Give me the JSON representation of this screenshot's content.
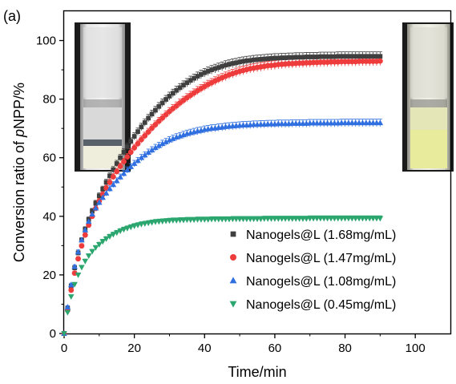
{
  "panel_label": "(a)",
  "colors": {
    "s168": "#3f3f3f",
    "s147": "#ee3b3b",
    "s108": "#2f6fe0",
    "s045": "#2aa66e"
  },
  "chart_data": {
    "type": "scatter",
    "title": "",
    "xlabel": "Time/min",
    "ylabel_prefix": "Conversion ratio of ",
    "ylabel_italic": "p",
    "ylabel_suffix": "NPP/%",
    "xlim": [
      0,
      110
    ],
    "ylim": [
      0,
      110
    ],
    "x_ticks": [
      0,
      20,
      40,
      60,
      80,
      100
    ],
    "y_ticks": [
      0,
      20,
      40,
      60,
      80,
      100
    ],
    "x_tick_labels": [
      "0",
      "20",
      "40",
      "60",
      "80",
      "100"
    ],
    "y_tick_labels": [
      "0",
      "20",
      "40",
      "60",
      "80",
      "100"
    ],
    "legend_position": "bottom-right",
    "error_bars": true,
    "series": [
      {
        "name": "Nanogels@L (1.68mg/mL)",
        "marker": "square",
        "color_key": "s168",
        "x": [
          0,
          1,
          2,
          3,
          4,
          5,
          6,
          7,
          8,
          9,
          10,
          11,
          12,
          13,
          14,
          15,
          16,
          17,
          18,
          19,
          20,
          21,
          22,
          23,
          24,
          25,
          26,
          27,
          28,
          29,
          30,
          31,
          32,
          33,
          34,
          35,
          36,
          37,
          38,
          39,
          40,
          41,
          42,
          43,
          44,
          45,
          46,
          47,
          48,
          49,
          50,
          51,
          52,
          53,
          54,
          55,
          56,
          57,
          58,
          59,
          60,
          61,
          62,
          63,
          64,
          65,
          66,
          67,
          68,
          69,
          70,
          71,
          72,
          73,
          74,
          75,
          76,
          77,
          78,
          79,
          80,
          81,
          82,
          83,
          84,
          85,
          86,
          87,
          88,
          89,
          90
        ],
        "y": [
          0.0,
          8.6,
          16.2,
          22.4,
          27.5,
          31.9,
          35.6,
          38.9,
          41.8,
          44.5,
          47.0,
          49.3,
          51.6,
          53.8,
          55.9,
          58.0,
          60.0,
          61.9,
          63.8,
          65.6,
          67.3,
          68.9,
          70.5,
          72.0,
          73.5,
          74.9,
          76.2,
          77.5,
          78.7,
          79.9,
          81.0,
          82.0,
          83.0,
          83.9,
          84.8,
          85.6,
          86.4,
          87.1,
          87.8,
          88.4,
          89.0,
          89.5,
          90.0,
          90.4,
          90.8,
          91.2,
          91.6,
          91.9,
          92.2,
          92.4,
          92.7,
          92.9,
          93.1,
          93.2,
          93.4,
          93.5,
          93.6,
          93.7,
          93.8,
          93.9,
          94.0,
          94.0,
          94.1,
          94.1,
          94.2,
          94.2,
          94.3,
          94.3,
          94.3,
          94.4,
          94.4,
          94.4,
          94.4,
          94.5,
          94.5,
          94.5,
          94.5,
          94.5,
          94.6,
          94.6,
          94.6,
          94.6,
          94.6,
          94.6,
          94.6,
          94.6,
          94.6,
          94.6,
          94.6,
          94.6,
          94.6
        ]
      },
      {
        "name": "Nanogels@L (1.47mg/mL)",
        "marker": "circle",
        "color_key": "s147",
        "x": [
          0,
          1,
          2,
          3,
          4,
          5,
          6,
          7,
          8,
          9,
          10,
          11,
          12,
          13,
          14,
          15,
          16,
          17,
          18,
          19,
          20,
          21,
          22,
          23,
          24,
          25,
          26,
          27,
          28,
          29,
          30,
          31,
          32,
          33,
          34,
          35,
          36,
          37,
          38,
          39,
          40,
          41,
          42,
          43,
          44,
          45,
          46,
          47,
          48,
          49,
          50,
          51,
          52,
          53,
          54,
          55,
          56,
          57,
          58,
          59,
          60,
          61,
          62,
          63,
          64,
          65,
          66,
          67,
          68,
          69,
          70,
          71,
          72,
          73,
          74,
          75,
          76,
          77,
          78,
          79,
          80,
          81,
          82,
          83,
          84,
          85,
          86,
          87,
          88,
          89,
          90
        ],
        "y": [
          0.0,
          7.9,
          14.8,
          20.6,
          25.5,
          29.9,
          33.6,
          37.0,
          40.0,
          42.7,
          45.2,
          47.5,
          49.6,
          51.6,
          53.5,
          55.3,
          57.1,
          58.7,
          60.3,
          61.9,
          63.4,
          64.8,
          66.2,
          67.5,
          68.8,
          70.1,
          71.3,
          72.5,
          73.6,
          74.7,
          75.8,
          76.8,
          77.7,
          78.7,
          79.6,
          80.5,
          81.3,
          82.1,
          82.9,
          83.6,
          84.3,
          85.0,
          85.6,
          86.2,
          86.8,
          87.3,
          87.8,
          88.3,
          88.7,
          89.1,
          89.5,
          89.8,
          90.1,
          90.4,
          90.6,
          90.8,
          91.0,
          91.2,
          91.4,
          91.5,
          91.6,
          91.8,
          91.9,
          92.0,
          92.1,
          92.1,
          92.2,
          92.3,
          92.3,
          92.4,
          92.4,
          92.5,
          92.5,
          92.6,
          92.6,
          92.6,
          92.7,
          92.7,
          92.7,
          92.8,
          92.8,
          92.8,
          92.8,
          92.8,
          92.9,
          92.9,
          92.9,
          92.9,
          92.9,
          92.9,
          93.0
        ]
      },
      {
        "name": "Nanogels@L (1.08mg/mL)",
        "marker": "triangle-up",
        "color_key": "s108",
        "x": [
          0,
          1,
          2,
          3,
          4,
          5,
          6,
          7,
          8,
          9,
          10,
          11,
          12,
          13,
          14,
          15,
          16,
          17,
          18,
          19,
          20,
          21,
          22,
          23,
          24,
          25,
          26,
          27,
          28,
          29,
          30,
          31,
          32,
          33,
          34,
          35,
          36,
          37,
          38,
          39,
          40,
          41,
          42,
          43,
          44,
          45,
          46,
          47,
          48,
          49,
          50,
          51,
          52,
          53,
          54,
          55,
          56,
          57,
          58,
          59,
          60,
          61,
          62,
          63,
          64,
          65,
          66,
          67,
          68,
          69,
          70,
          71,
          72,
          73,
          74,
          75,
          76,
          77,
          78,
          79,
          80,
          81,
          82,
          83,
          84,
          85,
          86,
          87,
          88,
          89,
          90
        ],
        "y": [
          0.0,
          9.0,
          16.6,
          22.8,
          27.8,
          31.9,
          35.3,
          38.2,
          40.7,
          42.8,
          44.7,
          46.4,
          47.9,
          49.4,
          50.8,
          52.1,
          53.4,
          54.6,
          55.8,
          56.9,
          58.0,
          59.0,
          60.0,
          60.9,
          61.8,
          62.6,
          63.4,
          64.1,
          64.8,
          65.4,
          66.0,
          66.5,
          67.0,
          67.4,
          67.8,
          68.2,
          68.5,
          68.8,
          69.1,
          69.3,
          69.6,
          69.8,
          70.0,
          70.1,
          70.3,
          70.4,
          70.6,
          70.7,
          70.8,
          70.9,
          71.0,
          71.1,
          71.1,
          71.2,
          71.3,
          71.3,
          71.4,
          71.4,
          71.5,
          71.5,
          71.5,
          71.6,
          71.6,
          71.6,
          71.6,
          71.7,
          71.7,
          71.7,
          71.7,
          71.7,
          71.8,
          71.8,
          71.8,
          71.8,
          71.8,
          71.8,
          71.8,
          71.8,
          71.8,
          71.9,
          71.9,
          71.9,
          71.9,
          71.9,
          71.9,
          71.9,
          71.9,
          71.9,
          71.9,
          71.9,
          71.9
        ]
      },
      {
        "name": "Nanogels@L (0.45mg/mL)",
        "marker": "triangle-down",
        "color_key": "s045",
        "x": [
          0,
          1,
          2,
          3,
          4,
          5,
          6,
          7,
          8,
          9,
          10,
          11,
          12,
          13,
          14,
          15,
          16,
          17,
          18,
          19,
          20,
          21,
          22,
          23,
          24,
          25,
          26,
          27,
          28,
          29,
          30,
          31,
          32,
          33,
          34,
          35,
          36,
          37,
          38,
          39,
          40,
          41,
          42,
          43,
          44,
          45,
          46,
          47,
          48,
          49,
          50,
          51,
          52,
          53,
          54,
          55,
          56,
          57,
          58,
          59,
          60,
          61,
          62,
          63,
          64,
          65,
          66,
          67,
          68,
          69,
          70,
          71,
          72,
          73,
          74,
          75,
          76,
          77,
          78,
          79,
          80,
          81,
          82,
          83,
          84,
          85,
          86,
          87,
          88,
          89,
          90
        ],
        "y": [
          0.0,
          7.2,
          12.6,
          16.8,
          20.0,
          22.6,
          24.7,
          26.5,
          28.0,
          29.3,
          30.4,
          31.4,
          32.3,
          33.1,
          33.8,
          34.4,
          35.0,
          35.5,
          35.9,
          36.3,
          36.7,
          37.0,
          37.3,
          37.5,
          37.7,
          37.9,
          38.1,
          38.2,
          38.3,
          38.4,
          38.5,
          38.6,
          38.6,
          38.7,
          38.7,
          38.8,
          38.8,
          38.8,
          38.9,
          38.9,
          38.9,
          38.9,
          39.0,
          39.0,
          39.0,
          39.0,
          39.0,
          39.0,
          39.1,
          39.1,
          39.1,
          39.1,
          39.1,
          39.1,
          39.1,
          39.1,
          39.1,
          39.2,
          39.2,
          39.2,
          39.2,
          39.2,
          39.2,
          39.2,
          39.2,
          39.2,
          39.2,
          39.2,
          39.2,
          39.2,
          39.3,
          39.3,
          39.3,
          39.3,
          39.3,
          39.3,
          39.3,
          39.3,
          39.3,
          39.3,
          39.3,
          39.3,
          39.3,
          39.3,
          39.3,
          39.3,
          39.3,
          39.3,
          39.3,
          39.3,
          39.3
        ]
      }
    ]
  },
  "insets": [
    {
      "name": "cuvette-left",
      "liquid_color": "#efeddc",
      "glass_color": "#cfcfcf"
    },
    {
      "name": "cuvette-right",
      "liquid_color": "#e8ea9c",
      "glass_color": "#d8d8cc"
    }
  ]
}
